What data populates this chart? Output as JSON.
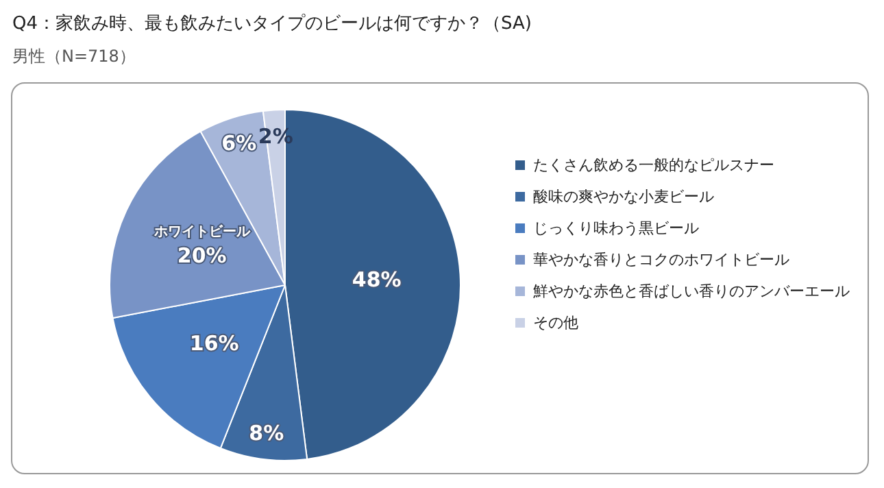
{
  "chart_data": {
    "type": "pie",
    "title": "Q4：家飲み時、最も飲みたいタイプのビールは何ですか？（SA)",
    "subtitle": "男性（N=718）",
    "categories": [
      "たくさん飲める一般的なピルスナー",
      "酸味の爽やかな小麦ビール",
      "じっくり味わう黒ビール",
      "華やかな香りとコクのホワイトビール",
      "鮮やかな赤色と香ばしい香りのアンバーエール",
      "その他"
    ],
    "values": [
      48,
      8,
      16,
      20,
      6,
      2
    ],
    "value_labels": [
      "48%",
      "8%",
      "16%",
      "ホワイトビール\n20%",
      "6%",
      "2%"
    ],
    "colors": [
      "#335d8c",
      "#3d6aa0",
      "#4a7cbf",
      "#7893c6",
      "#a6b6d9",
      "#c9d1e6"
    ],
    "legend": "right"
  }
}
